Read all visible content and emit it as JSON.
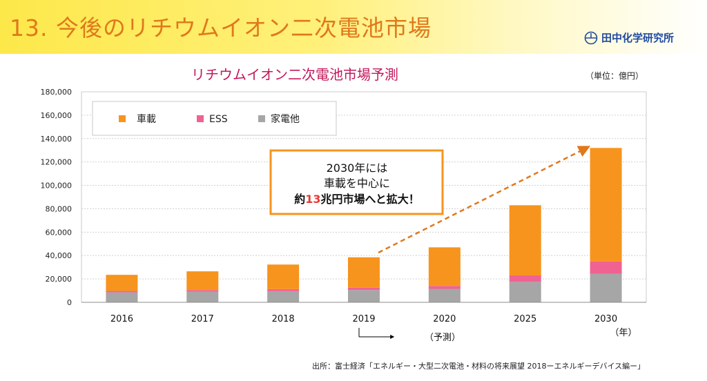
{
  "slide": {
    "title": "13. 今後のリチウムイオン二次電池市場",
    "logo_text": "田中化学研究所",
    "source": "出所：富士経済「エネルギー・大型二次電池・材料の将来展望 2018ーエネルギーデバイス編ー」"
  },
  "colors": {
    "title": "#e0781c",
    "chart_title": "#c2185b",
    "vehicle": "#f7941d",
    "ess": "#f06292",
    "appliance": "#a6a6a6",
    "callout_border": "#f7941d",
    "highlight": "#e53935"
  },
  "chart_data": {
    "type": "bar",
    "stacked": true,
    "title": "リチウムイオン二次電池市場予測",
    "unit_label": "（単位：億円）",
    "xlabel": "（年）",
    "ylabel": "",
    "ylim": [
      0,
      180000
    ],
    "ytick_labels": [
      "0",
      "20,000",
      "40,000",
      "60,000",
      "80,000",
      "100,000",
      "120,000",
      "140,000",
      "160,000",
      "180,000"
    ],
    "categories": [
      "2016",
      "2017",
      "2018",
      "2019",
      "2020",
      "2025",
      "2030"
    ],
    "forecast_label": "（予測）",
    "legend_position": "top-left",
    "grid": true,
    "series": [
      {
        "name": "車載",
        "values": [
          13800,
          16000,
          21000,
          26000,
          33000,
          60000,
          97000
        ]
      },
      {
        "name": "ESS",
        "values": [
          1200,
          1500,
          1800,
          2000,
          2500,
          5500,
          10500
        ]
      },
      {
        "name": "家電他",
        "values": [
          8500,
          9000,
          9500,
          10500,
          11500,
          17500,
          24500
        ]
      }
    ],
    "callout": {
      "line1": "2030年には",
      "line2": "車載を中心に",
      "line3_pre": "約",
      "line3_highlight": "13",
      "line3_post": "兆円市場へと拡大！"
    }
  }
}
